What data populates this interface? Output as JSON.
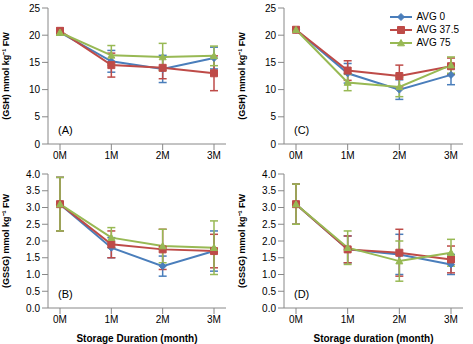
{
  "chart_data": [
    {
      "type": "line",
      "annotation": "(A)",
      "y_label": "(GSH) mmol kg⁻¹ FW",
      "categories": [
        "0M",
        "1M",
        "2M",
        "3M"
      ],
      "ylim": [
        0,
        25
      ],
      "yticks": [
        0,
        5,
        10,
        15,
        20,
        25
      ],
      "grid": false,
      "series": [
        {
          "name": "AVG 0",
          "color": "#4a7ebb",
          "marker": "diamond",
          "values": [
            20.5,
            15.2,
            13.8,
            15.8
          ],
          "errors": [
            0.5,
            2.0,
            2.5,
            2.0
          ]
        },
        {
          "name": "AVG 37.5",
          "color": "#be4b48",
          "marker": "square",
          "values": [
            20.8,
            14.5,
            14.0,
            13.0
          ],
          "errors": [
            0.5,
            2.2,
            2.0,
            3.2
          ]
        },
        {
          "name": "AVG 75",
          "color": "#98b954",
          "marker": "triangle",
          "values": [
            20.5,
            16.3,
            16.0,
            16.2
          ],
          "errors": [
            0.5,
            1.8,
            2.5,
            1.8
          ]
        }
      ]
    },
    {
      "type": "line",
      "annotation": "(B)",
      "y_label": "(GSSG) mmol kg⁻¹ FW",
      "x_label": "Storage Duration (month)",
      "categories": [
        "0M",
        "1M",
        "2M",
        "3M"
      ],
      "ylim": [
        0,
        4
      ],
      "yticks": [
        {
          "value": 0,
          "label": "0.0"
        },
        {
          "value": 0.5,
          "label": "0.5"
        },
        {
          "value": 1,
          "label": "1.0"
        },
        {
          "value": 1.5,
          "label": "1.5"
        },
        {
          "value": 2,
          "label": "2.0"
        },
        {
          "value": 2.5,
          "label": "2.5"
        },
        {
          "value": 3,
          "label": "3.0"
        },
        {
          "value": 3.5,
          "label": "3.5"
        },
        {
          "value": 4,
          "label": "4.0"
        }
      ],
      "grid": false,
      "series": [
        {
          "name": "AVG 0",
          "color": "#4a7ebb",
          "marker": "diamond",
          "values": [
            3.1,
            1.8,
            1.25,
            1.7
          ],
          "errors": [
            0.8,
            0.3,
            0.3,
            0.6
          ]
        },
        {
          "name": "AVG 37.5",
          "color": "#be4b48",
          "marker": "square",
          "values": [
            3.1,
            1.9,
            1.75,
            1.7
          ],
          "errors": [
            0.8,
            0.4,
            0.6,
            0.5
          ]
        },
        {
          "name": "AVG 75",
          "color": "#98b954",
          "marker": "triangle",
          "values": [
            3.1,
            2.1,
            1.85,
            1.8
          ],
          "errors": [
            0.8,
            0.3,
            0.5,
            0.8
          ]
        }
      ]
    },
    {
      "type": "line",
      "annotation": "(C)",
      "y_label": "(GSH) mmol kg⁻¹ FW",
      "categories": [
        "0M",
        "1M",
        "2M",
        "3M"
      ],
      "ylim": [
        0,
        25
      ],
      "yticks": [
        0,
        5,
        10,
        15,
        20,
        25
      ],
      "grid": false,
      "legend": "upper right",
      "series": [
        {
          "name": "AVG 0",
          "color": "#4a7ebb",
          "marker": "diamond",
          "values": [
            21.0,
            13.0,
            10.0,
            12.7
          ],
          "errors": [
            0.4,
            1.8,
            1.8,
            1.8
          ]
        },
        {
          "name": "AVG 37.5",
          "color": "#be4b48",
          "marker": "square",
          "values": [
            21.0,
            13.5,
            12.5,
            14.3
          ],
          "errors": [
            0.4,
            1.8,
            2.0,
            1.5
          ]
        },
        {
          "name": "AVG 75",
          "color": "#98b954",
          "marker": "triangle",
          "values": [
            21.0,
            11.3,
            10.5,
            14.5
          ],
          "errors": [
            0.4,
            1.5,
            1.8,
            1.5
          ]
        }
      ]
    },
    {
      "type": "line",
      "annotation": "(D)",
      "y_label": "(GSSG) mmol kg⁻¹ FW",
      "x_label": "Storage duration (month)",
      "categories": [
        "0M",
        "1M",
        "2M",
        "3M"
      ],
      "ylim": [
        0,
        4
      ],
      "yticks": [
        {
          "value": 0,
          "label": "0.0"
        },
        {
          "value": 0.5,
          "label": "0.5"
        },
        {
          "value": 1,
          "label": "1.0"
        },
        {
          "value": 1.5,
          "label": "1.5"
        },
        {
          "value": 2,
          "label": "2.0"
        },
        {
          "value": 2.5,
          "label": "2.5"
        },
        {
          "value": 3,
          "label": "3.0"
        },
        {
          "value": 3.5,
          "label": "3.5"
        },
        {
          "value": 4,
          "label": "4.0"
        }
      ],
      "grid": false,
      "series": [
        {
          "name": "AVG 0",
          "color": "#4a7ebb",
          "marker": "diamond",
          "values": [
            3.1,
            1.75,
            1.6,
            1.3
          ],
          "errors": [
            0.6,
            0.4,
            0.6,
            0.3
          ]
        },
        {
          "name": "AVG 37.5",
          "color": "#be4b48",
          "marker": "square",
          "values": [
            3.1,
            1.75,
            1.65,
            1.45
          ],
          "errors": [
            0.6,
            0.4,
            0.7,
            0.4
          ]
        },
        {
          "name": "AVG 75",
          "color": "#98b954",
          "marker": "triangle",
          "values": [
            3.1,
            1.8,
            1.4,
            1.65
          ],
          "errors": [
            0.6,
            0.5,
            0.6,
            0.4
          ]
        }
      ]
    }
  ]
}
